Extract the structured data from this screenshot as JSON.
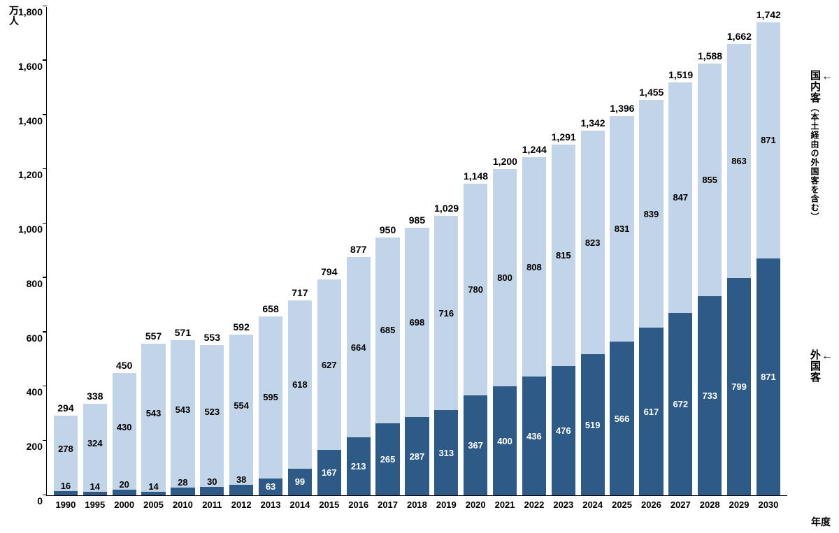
{
  "chart": {
    "type": "stacked-bar",
    "y_axis_label": "万人",
    "x_axis_label": "年度",
    "ylim": [
      0,
      1800
    ],
    "ytick_step": 200,
    "yticks": [
      "0",
      "200",
      "400",
      "600",
      "800",
      "1,000",
      "1,200",
      "1,400",
      "1,600",
      "1,800"
    ],
    "background_color": "#ffffff",
    "axis_color": "#000000",
    "text_color": "#000000",
    "bar_width_ratio": 0.82,
    "series": [
      {
        "key": "foreign",
        "name": "外国客",
        "color": "#2d5a87",
        "label_color": "#ffffff"
      },
      {
        "key": "domestic",
        "name": "国内客",
        "sub": "（本土経由の外国客を含む）",
        "color": "#c2d4e8",
        "label_color": "#000000"
      }
    ],
    "categories": [
      "1990",
      "1995",
      "2000",
      "2005",
      "2010",
      "2011",
      "2012",
      "2013",
      "2014",
      "2015",
      "2016",
      "2017",
      "2018",
      "2019",
      "2020",
      "2021",
      "2022",
      "2023",
      "2024",
      "2025",
      "2026",
      "2027",
      "2028",
      "2029",
      "2030"
    ],
    "data": [
      {
        "foreign": 16,
        "domestic": 278,
        "total": 294,
        "f_lbl": "16",
        "d_lbl": "278",
        "t_lbl": "294"
      },
      {
        "foreign": 14,
        "domestic": 324,
        "total": 338,
        "f_lbl": "14",
        "d_lbl": "324",
        "t_lbl": "338"
      },
      {
        "foreign": 20,
        "domestic": 430,
        "total": 450,
        "f_lbl": "20",
        "d_lbl": "430",
        "t_lbl": "450"
      },
      {
        "foreign": 14,
        "domestic": 543,
        "total": 557,
        "f_lbl": "14",
        "d_lbl": "543",
        "t_lbl": "557"
      },
      {
        "foreign": 28,
        "domestic": 543,
        "total": 571,
        "f_lbl": "28",
        "d_lbl": "543",
        "t_lbl": "571"
      },
      {
        "foreign": 30,
        "domestic": 523,
        "total": 553,
        "f_lbl": "30",
        "d_lbl": "523",
        "t_lbl": "553"
      },
      {
        "foreign": 38,
        "domestic": 554,
        "total": 592,
        "f_lbl": "38",
        "d_lbl": "554",
        "t_lbl": "592"
      },
      {
        "foreign": 63,
        "domestic": 595,
        "total": 658,
        "f_lbl": "63",
        "d_lbl": "595",
        "t_lbl": "658"
      },
      {
        "foreign": 99,
        "domestic": 618,
        "total": 717,
        "f_lbl": "99",
        "d_lbl": "618",
        "t_lbl": "717"
      },
      {
        "foreign": 167,
        "domestic": 627,
        "total": 794,
        "f_lbl": "167",
        "d_lbl": "627",
        "t_lbl": "794"
      },
      {
        "foreign": 213,
        "domestic": 664,
        "total": 877,
        "f_lbl": "213",
        "d_lbl": "664",
        "t_lbl": "877"
      },
      {
        "foreign": 265,
        "domestic": 685,
        "total": 950,
        "f_lbl": "265",
        "d_lbl": "685",
        "t_lbl": "950"
      },
      {
        "foreign": 287,
        "domestic": 698,
        "total": 985,
        "f_lbl": "287",
        "d_lbl": "698",
        "t_lbl": "985"
      },
      {
        "foreign": 313,
        "domestic": 716,
        "total": 1029,
        "f_lbl": "313",
        "d_lbl": "716",
        "t_lbl": "1,029"
      },
      {
        "foreign": 367,
        "domestic": 780,
        "total": 1148,
        "f_lbl": "367",
        "d_lbl": "780",
        "t_lbl": "1,148"
      },
      {
        "foreign": 400,
        "domestic": 800,
        "total": 1200,
        "f_lbl": "400",
        "d_lbl": "800",
        "t_lbl": "1,200"
      },
      {
        "foreign": 436,
        "domestic": 808,
        "total": 1244,
        "f_lbl": "436",
        "d_lbl": "808",
        "t_lbl": "1,244"
      },
      {
        "foreign": 476,
        "domestic": 815,
        "total": 1291,
        "f_lbl": "476",
        "d_lbl": "815",
        "t_lbl": "1,291"
      },
      {
        "foreign": 519,
        "domestic": 823,
        "total": 1342,
        "f_lbl": "519",
        "d_lbl": "823",
        "t_lbl": "1,342"
      },
      {
        "foreign": 566,
        "domestic": 831,
        "total": 1396,
        "f_lbl": "566",
        "d_lbl": "831",
        "t_lbl": "1,396"
      },
      {
        "foreign": 617,
        "domestic": 839,
        "total": 1455,
        "f_lbl": "617",
        "d_lbl": "839",
        "t_lbl": "1,455"
      },
      {
        "foreign": 672,
        "domestic": 847,
        "total": 1519,
        "f_lbl": "672",
        "d_lbl": "847",
        "t_lbl": "1,519"
      },
      {
        "foreign": 733,
        "domestic": 855,
        "total": 1588,
        "f_lbl": "733",
        "d_lbl": "855",
        "t_lbl": "1,588"
      },
      {
        "foreign": 799,
        "domestic": 863,
        "total": 1662,
        "f_lbl": "799",
        "d_lbl": "863",
        "t_lbl": "1,662"
      },
      {
        "foreign": 871,
        "domestic": 871,
        "total": 1742,
        "f_lbl": "871",
        "d_lbl": "871",
        "t_lbl": "1,742"
      }
    ],
    "right_legend": {
      "domestic_arrow": "←",
      "foreign_arrow": "←"
    }
  }
}
